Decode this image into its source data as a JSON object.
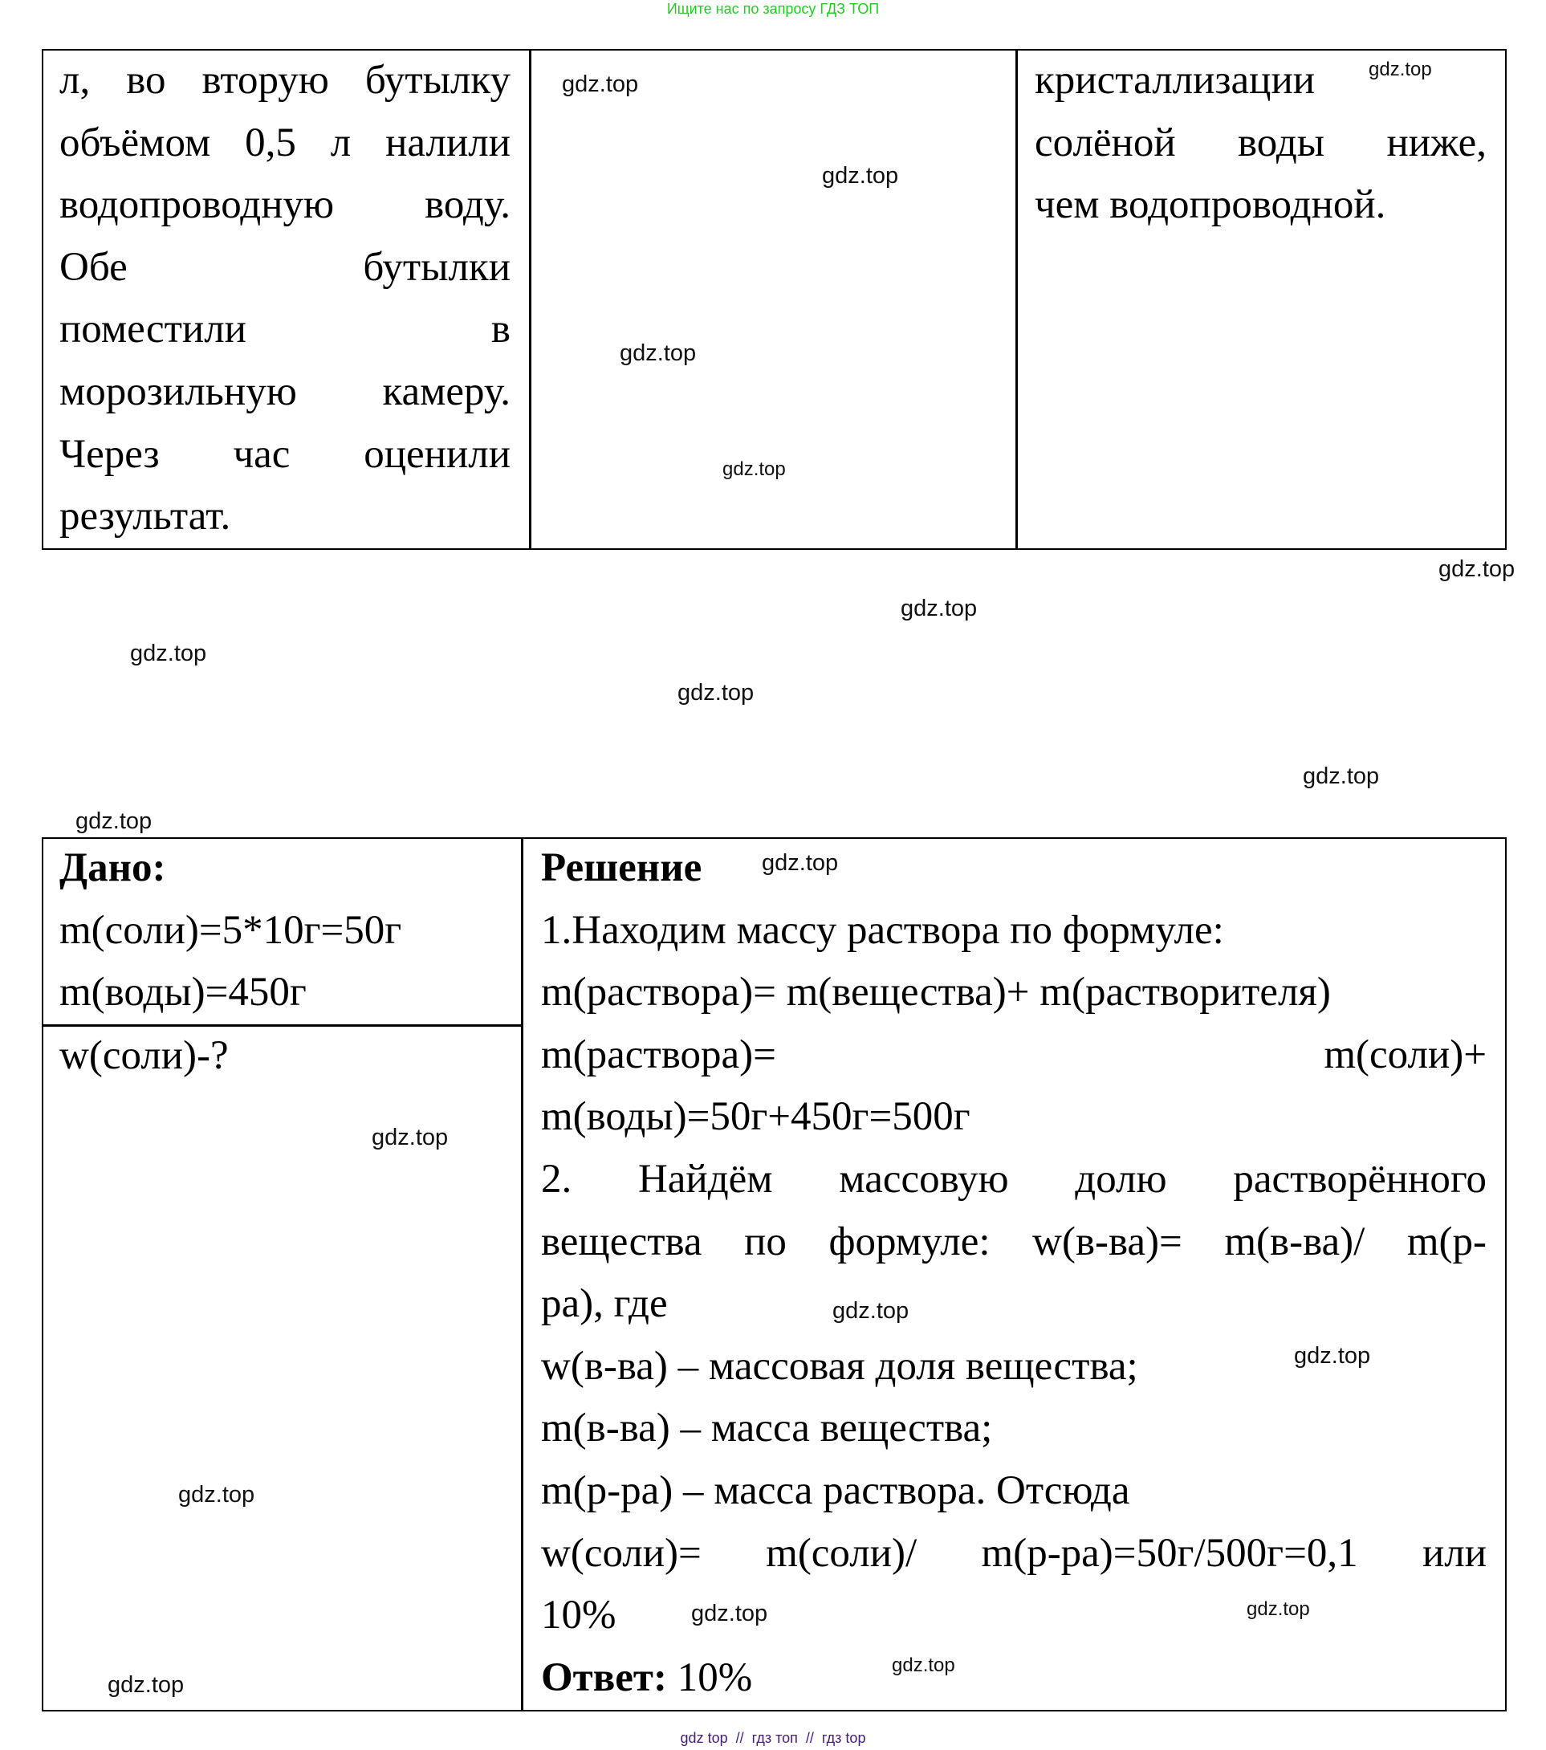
{
  "header": {
    "text": "Ищите нас по запросу ГДЗ ТОП",
    "color": "#22cc22"
  },
  "footer": {
    "text": "gdz top  //  гдз топ  //  гдз top",
    "color": "#4a1a7a"
  },
  "watermark": "gdz.top",
  "top_table": {
    "col1_lines": [
      "л, во вторую бутылку",
      "объёмом 0,5 л налили",
      "водопроводную воду.",
      "Обе бутылки",
      "поместили в",
      "морозильную камеру.",
      "Через час оценили",
      "результат."
    ],
    "col2_lines": [],
    "col3_lines": [
      "кристаллизации",
      "солёной воды ниже,",
      "чем водопроводной."
    ]
  },
  "bottom_table": {
    "given_title": "Дано:",
    "given_lines": [
      "m(соли)=5*10г=50г",
      "m(воды)=450г"
    ],
    "find": "w(соли)-?",
    "solution_title": "Решение",
    "solution_lines": [
      "1.Находим массу раствора по формуле:",
      "m(раствора)= m(вещества)+ m(растворителя)",
      "m(раствора)= m(соли)+",
      "m(воды)=50г+450г=500г",
      "2. Найдём массовую долю растворённого",
      "вещества по формуле: w(в-ва)= m(в-ва)/ m(р-",
      "ра), где",
      "w(в-ва) – массовая доля вещества;",
      "m(в-ва) – масса вещества;",
      "m(р-ра) – масса раствора. Отсюда",
      "w(соли)= m(соли)/ m(р-ра)=50г/500г=0,1 или",
      "10%"
    ],
    "answer_label": "Ответ:",
    "answer_value": " 10%"
  }
}
